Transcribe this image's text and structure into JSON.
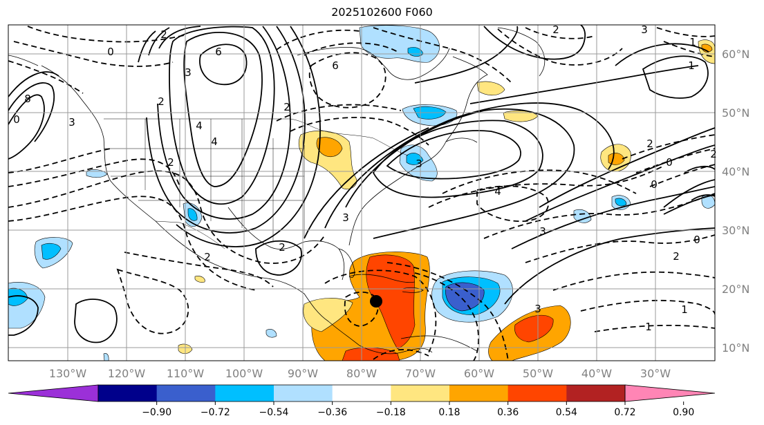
{
  "title": "2025102600 F060",
  "map": {
    "lon_labels": [
      "130°W",
      "120°W",
      "110°W",
      "100°W",
      "90°W",
      "80°W",
      "70°W",
      "60°W",
      "50°W",
      "40°W",
      "30°W"
    ],
    "lat_labels": [
      "60°N",
      "50°N",
      "40°N",
      "30°N",
      "20°N",
      "10°N"
    ],
    "storm_marker": {
      "lon": "79.5°W",
      "lat": "18°N"
    },
    "contour_labels": [
      "6",
      "2",
      "3",
      "6",
      "2",
      "2",
      "0",
      "4",
      "8",
      "3",
      "2",
      "4",
      "0",
      "3",
      "2",
      "2",
      "3",
      "4",
      "3",
      "3",
      "1",
      "0",
      "2",
      "1",
      "2",
      "0",
      "0",
      "2",
      "1",
      "1",
      "3",
      "2"
    ]
  },
  "colorbar": {
    "tick_labels": [
      "−0.90",
      "−0.72",
      "−0.54",
      "−0.36",
      "−0.18",
      "0.18",
      "0.36",
      "0.54",
      "0.72",
      "0.90"
    ],
    "colors": [
      "#9b30d8",
      "#00008b",
      "#3a5fcd",
      "#00bfff",
      "#b0e0ff",
      "#ffffff",
      "#ffe680",
      "#ffa500",
      "#ff4500",
      "#b22222",
      "#ff85b5"
    ]
  }
}
